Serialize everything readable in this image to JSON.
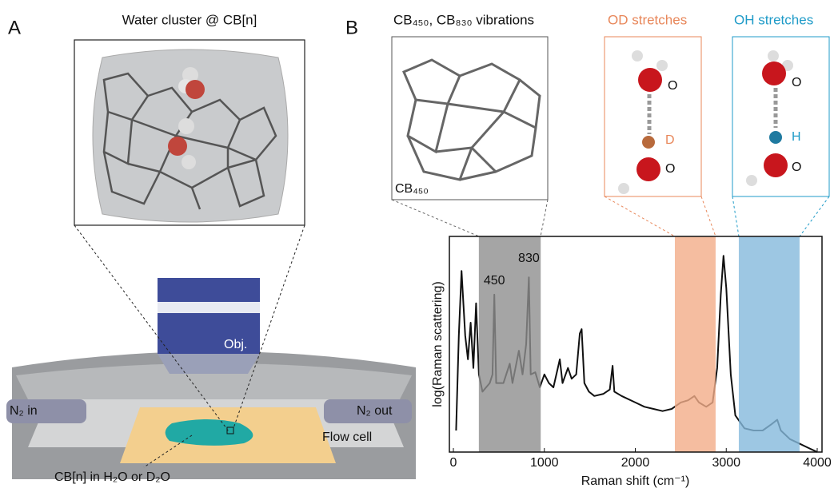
{
  "panel_a": {
    "label": "A",
    "inset_title": "Water cluster @ CB[n]",
    "objective": "Obj.",
    "inlet": "N₂ in",
    "outlet": "N₂ out",
    "flow_cell": "Flow cell",
    "sample": "CB[n] in H₂O or D₂O"
  },
  "panel_b": {
    "label": "B",
    "vib_title": "CB₄₅₀, CB₈₃₀ vibrations",
    "vib_label": "CB₄₅₀",
    "od_title": "OD stretches",
    "od_atoms": [
      "O",
      "D",
      "O"
    ],
    "oh_title": "OH stretches",
    "oh_atoms": [
      "O",
      "H",
      "O"
    ]
  },
  "chart_data": {
    "type": "line",
    "x_label": "Raman shift (cm⁻¹)",
    "y_label": "log(Raman scattering)",
    "x": [
      30,
      60,
      90,
      130,
      160,
      190,
      220,
      250,
      280,
      320,
      400,
      430,
      450,
      470,
      550,
      620,
      650,
      720,
      760,
      800,
      830,
      850,
      900,
      950,
      1000,
      1050,
      1100,
      1170,
      1200,
      1260,
      1300,
      1350,
      1390,
      1410,
      1440,
      1490,
      1550,
      1650,
      1720,
      1750,
      1770,
      1850,
      2000,
      2100,
      2200,
      2300,
      2400,
      2500,
      2580,
      2650,
      2700,
      2780,
      2850,
      2900,
      2940,
      2970,
      3000,
      3050,
      3100,
      3200,
      3300,
      3400,
      3500,
      3560,
      3600,
      3700,
      3800,
      3900,
      4000
    ],
    "values": [
      10,
      54,
      84,
      54,
      43,
      60,
      39,
      69,
      36,
      28,
      32,
      36,
      73,
      32,
      32,
      41,
      32,
      47,
      36,
      50,
      81,
      36,
      37,
      30,
      36,
      32,
      30,
      43,
      32,
      39,
      34,
      36,
      55,
      57,
      32,
      28,
      26,
      27,
      29,
      40,
      28,
      26,
      23,
      21,
      20,
      19,
      20,
      23,
      24,
      26,
      23,
      21,
      23,
      39,
      73,
      91,
      76,
      36,
      17,
      11,
      10,
      10,
      13,
      15,
      10,
      6,
      4,
      2,
      0
    ],
    "color": "#111111",
    "xlim": [
      0,
      4000
    ],
    "ylim": [
      0,
      100
    ],
    "xticks": [
      0,
      1000,
      2000,
      3000,
      4000
    ],
    "bands": [
      {
        "xlim": [
          280,
          960
        ],
        "color": "#8f8f8f"
      },
      {
        "xlim": [
          2435,
          2883
        ],
        "color": "#f2ad88"
      },
      {
        "xlim": [
          3138,
          3806
        ],
        "color": "#84b9dc"
      }
    ],
    "peak_labels": [
      450,
      830
    ]
  }
}
